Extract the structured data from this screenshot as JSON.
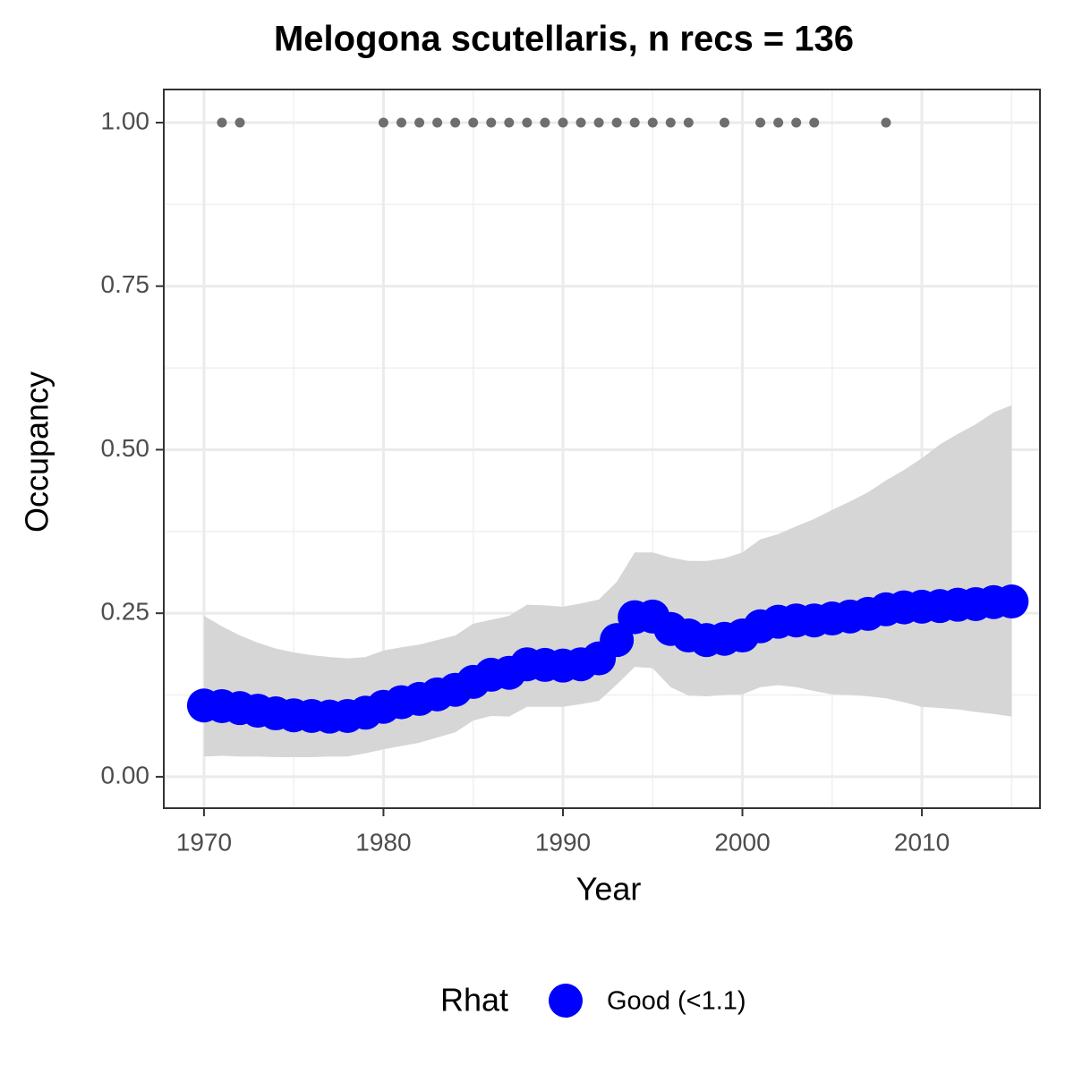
{
  "chart_data": {
    "type": "scatter",
    "title": "Melogona scutellaris, n recs = 136",
    "x_label": "Year",
    "y_label": "Occupancy",
    "legend_title": "Rhat",
    "legend_position": "bottom",
    "grid": true,
    "xlim": [
      1967.76,
      2016.58
    ],
    "ylim": [
      -0.048,
      1.0506
    ],
    "xticks": [
      1970,
      1980,
      1990,
      2000,
      2010
    ],
    "x_minor_ticks": [
      1975,
      1985,
      1995,
      2005,
      2015
    ],
    "yticks": [
      {
        "value": 0,
        "label": "0.00"
      },
      {
        "value": 0.25,
        "label": "0.25"
      },
      {
        "value": 0.5,
        "label": "0.50"
      },
      {
        "value": 0.75,
        "label": "0.75"
      },
      {
        "value": 1,
        "label": "1.00"
      }
    ],
    "y_minor_ticks": [
      0.125,
      0.375,
      0.625,
      0.875
    ],
    "x": [
      1970,
      1971,
      1972,
      1973,
      1974,
      1975,
      1976,
      1977,
      1978,
      1979,
      1980,
      1981,
      1982,
      1983,
      1984,
      1985,
      1986,
      1987,
      1988,
      1989,
      1990,
      1991,
      1992,
      1993,
      1994,
      1995,
      1996,
      1997,
      1998,
      1999,
      2000,
      2001,
      2002,
      2003,
      2004,
      2005,
      2006,
      2007,
      2008,
      2009,
      2010,
      2011,
      2012,
      2013,
      2014,
      2015
    ],
    "series": [
      {
        "name": "Good (<1.1)",
        "color": "#0000ff",
        "values": [
          0.109,
          0.108,
          0.105,
          0.101,
          0.097,
          0.094,
          0.093,
          0.092,
          0.093,
          0.098,
          0.107,
          0.114,
          0.119,
          0.126,
          0.133,
          0.145,
          0.156,
          0.159,
          0.172,
          0.171,
          0.17,
          0.172,
          0.181,
          0.209,
          0.244,
          0.245,
          0.226,
          0.216,
          0.209,
          0.211,
          0.216,
          0.23,
          0.237,
          0.239,
          0.239,
          0.242,
          0.245,
          0.249,
          0.256,
          0.259,
          0.26,
          0.261,
          0.263,
          0.264,
          0.267,
          0.268
        ]
      }
    ],
    "band": {
      "color": "#d6d6d6",
      "upper": [
        0.246,
        0.23,
        0.216,
        0.205,
        0.196,
        0.19,
        0.186,
        0.183,
        0.181,
        0.183,
        0.193,
        0.198,
        0.202,
        0.209,
        0.216,
        0.234,
        0.24,
        0.246,
        0.263,
        0.262,
        0.26,
        0.265,
        0.271,
        0.298,
        0.343,
        0.343,
        0.335,
        0.33,
        0.33,
        0.334,
        0.343,
        0.363,
        0.371,
        0.383,
        0.394,
        0.408,
        0.421,
        0.435,
        0.453,
        0.469,
        0.487,
        0.508,
        0.524,
        0.539,
        0.557,
        0.568
      ],
      "lower": [
        0.031,
        0.032,
        0.031,
        0.031,
        0.03,
        0.03,
        0.03,
        0.031,
        0.031,
        0.036,
        0.042,
        0.047,
        0.052,
        0.06,
        0.068,
        0.086,
        0.093,
        0.092,
        0.107,
        0.107,
        0.107,
        0.111,
        0.116,
        0.141,
        0.168,
        0.166,
        0.137,
        0.124,
        0.123,
        0.125,
        0.126,
        0.137,
        0.14,
        0.137,
        0.131,
        0.126,
        0.125,
        0.123,
        0.12,
        0.114,
        0.107,
        0.105,
        0.103,
        0.099,
        0.096,
        0.092
      ]
    },
    "records": {
      "color": "#6e6e6e",
      "x": [
        1971,
        1972,
        1980,
        1981,
        1982,
        1983,
        1984,
        1985,
        1986,
        1987,
        1988,
        1989,
        1990,
        1991,
        1992,
        1993,
        1994,
        1995,
        1996,
        1997,
        1999,
        2001,
        2002,
        2003,
        2004,
        2008
      ],
      "values": [
        1,
        1,
        1,
        1,
        1,
        1,
        1,
        1,
        1,
        1,
        1,
        1,
        1,
        1,
        1,
        1,
        1,
        1,
        1,
        1,
        1,
        1,
        1,
        1,
        1,
        1
      ]
    }
  }
}
